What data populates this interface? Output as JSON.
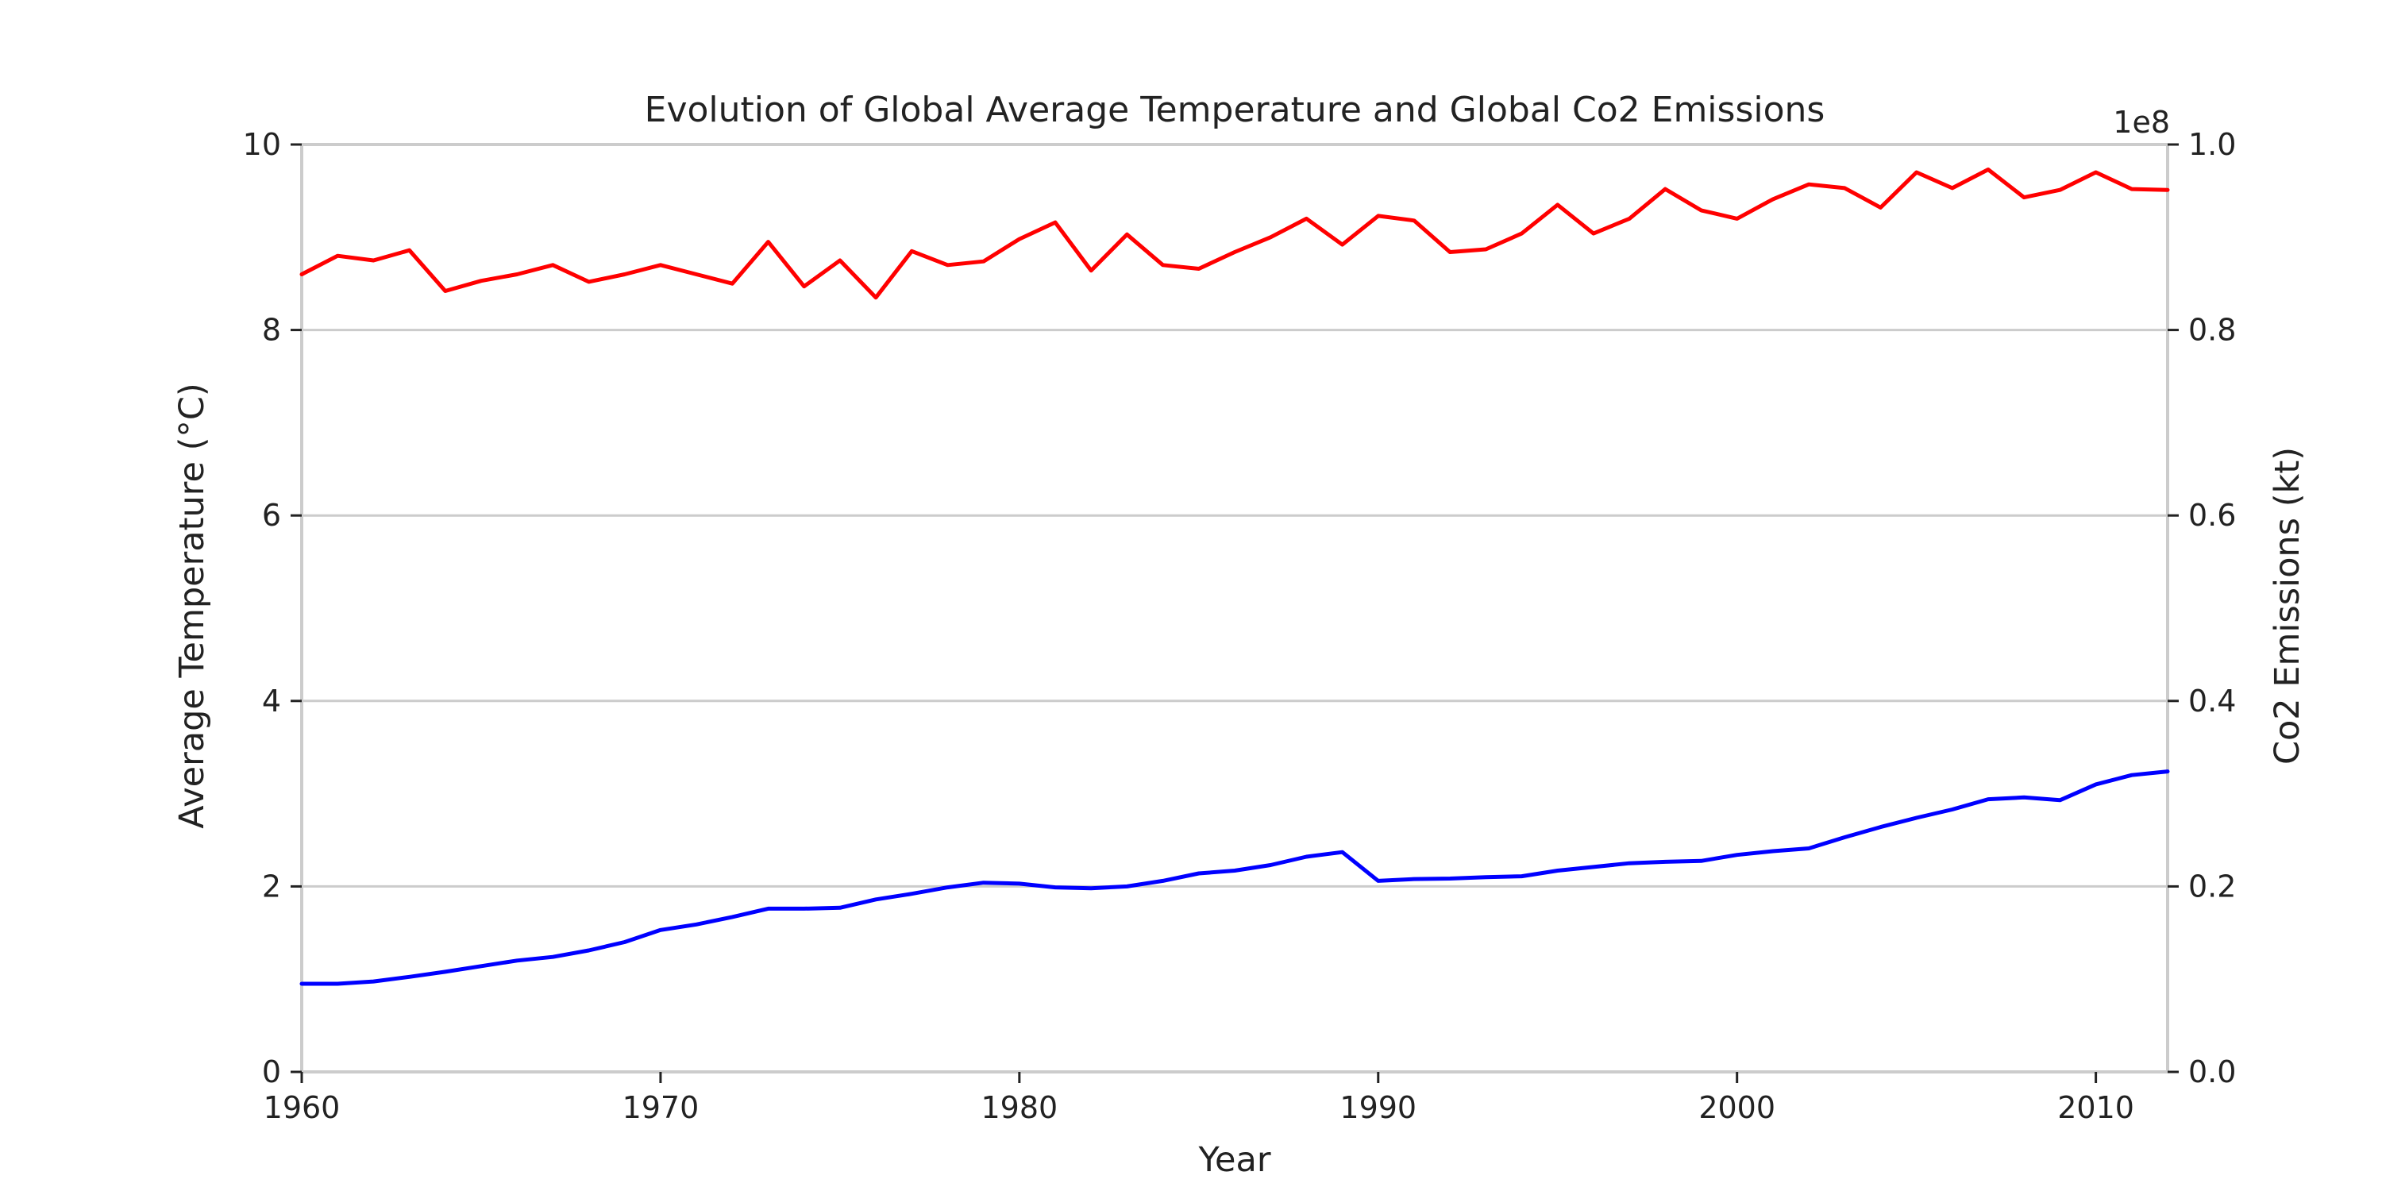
{
  "chart_data": {
    "type": "line",
    "title": "Evolution of Global Average Temperature and Global Co2 Emissions",
    "xlabel": "Year",
    "ylabel_left": "Average Temperature (°C)",
    "ylabel_right": "Co2 Emissions (kt)",
    "right_axis_multiplier": "1e8",
    "xlim": [
      1960,
      2012
    ],
    "ylim_left": [
      0,
      10
    ],
    "ylim_right": [
      0,
      100000000
    ],
    "x_ticks": [
      1960,
      1970,
      1980,
      1990,
      2000,
      2010
    ],
    "y_ticks_left": [
      "0",
      "2",
      "4",
      "6",
      "8",
      "10"
    ],
    "y_ticks_right": [
      "0.0",
      "0.2",
      "0.4",
      "0.6",
      "0.8",
      "1.0"
    ],
    "grid": "horizontal",
    "x": [
      1960,
      1961,
      1962,
      1963,
      1964,
      1965,
      1966,
      1967,
      1968,
      1969,
      1970,
      1971,
      1972,
      1973,
      1974,
      1975,
      1976,
      1977,
      1978,
      1979,
      1980,
      1981,
      1982,
      1983,
      1984,
      1985,
      1986,
      1987,
      1988,
      1989,
      1990,
      1991,
      1992,
      1993,
      1994,
      1995,
      1996,
      1997,
      1998,
      1999,
      2000,
      2001,
      2002,
      2003,
      2004,
      2005,
      2006,
      2007,
      2008,
      2009,
      2010,
      2011,
      2012
    ],
    "series": [
      {
        "axis": "left",
        "color": "#ff0000",
        "values": [
          8.6,
          8.8,
          8.75,
          8.86,
          8.42,
          8.53,
          8.6,
          8.7,
          8.52,
          8.6,
          8.7,
          8.6,
          8.5,
          8.95,
          8.47,
          8.75,
          8.35,
          8.85,
          8.7,
          8.74,
          8.98,
          9.16,
          8.64,
          9.03,
          8.7,
          8.66,
          8.84,
          9.0,
          9.2,
          8.92,
          9.23,
          9.18,
          8.84,
          8.87,
          9.04,
          9.35,
          9.04,
          9.2,
          9.52,
          9.29,
          9.2,
          9.41,
          9.57,
          9.53,
          9.32,
          9.7,
          9.53,
          9.73,
          9.43,
          9.51,
          9.7,
          9.52,
          9.51
        ]
      },
      {
        "axis": "right",
        "color": "#0000ff",
        "values": [
          9500000,
          9500000,
          9750000,
          10250000,
          10800000,
          11400000,
          12000000,
          12400000,
          13100000,
          14000000,
          15300000,
          15900000,
          16700000,
          17600000,
          17600000,
          17700000,
          18600000,
          19200000,
          19900000,
          20400000,
          20300000,
          19900000,
          19800000,
          20000000,
          20600000,
          21400000,
          21700000,
          22300000,
          23200000,
          23700000,
          20600000,
          20800000,
          20850000,
          21000000,
          21100000,
          21700000,
          22100000,
          22500000,
          22650000,
          22750000,
          23400000,
          23800000,
          24100000,
          25300000,
          26400000,
          27400000,
          28300000,
          29400000,
          29600000,
          29300000,
          31000000,
          32000000,
          32400000
        ]
      }
    ]
  }
}
